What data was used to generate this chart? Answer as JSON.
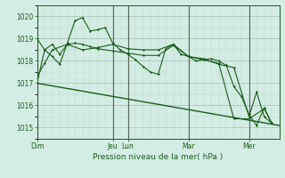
{
  "bg_color": "#d4ede4",
  "grid_color_major": "#a8c8b8",
  "grid_color_minor": "#b8d8c8",
  "line_color": "#1a5c1a",
  "day_line_color": "#556655",
  "title": "Pression niveau de la mer( hPa )",
  "ylim": [
    1014.5,
    1020.5
  ],
  "yticks": [
    1015,
    1016,
    1017,
    1018,
    1019,
    1020
  ],
  "xlim": [
    0,
    192
  ],
  "day_labels": [
    "Dim",
    "Jeu",
    "Lun",
    "Mar",
    "Mer"
  ],
  "day_positions": [
    0,
    60,
    72,
    120,
    168
  ],
  "series_trend": [
    [
      0,
      1017.0
    ],
    [
      192,
      1015.1
    ]
  ],
  "series_main": [
    [
      0,
      1019.0
    ],
    [
      6,
      1018.5
    ],
    [
      12,
      1018.2
    ],
    [
      18,
      1017.85
    ],
    [
      24,
      1018.8
    ],
    [
      30,
      1019.8
    ],
    [
      36,
      1019.95
    ],
    [
      42,
      1019.35
    ],
    [
      48,
      1019.4
    ],
    [
      54,
      1019.5
    ],
    [
      60,
      1018.8
    ],
    [
      66,
      1018.5
    ],
    [
      72,
      1018.3
    ],
    [
      78,
      1018.05
    ],
    [
      84,
      1017.75
    ],
    [
      90,
      1017.5
    ],
    [
      96,
      1017.4
    ],
    [
      102,
      1018.55
    ],
    [
      108,
      1018.75
    ],
    [
      114,
      1018.3
    ],
    [
      120,
      1018.2
    ],
    [
      126,
      1018.0
    ],
    [
      132,
      1018.05
    ],
    [
      138,
      1018.1
    ],
    [
      144,
      1018.0
    ],
    [
      150,
      1017.8
    ],
    [
      156,
      1016.85
    ],
    [
      162,
      1016.4
    ],
    [
      168,
      1015.6
    ],
    [
      174,
      1015.1
    ],
    [
      180,
      1015.9
    ],
    [
      186,
      1015.2
    ]
  ],
  "series2": [
    [
      0,
      1017.0
    ],
    [
      6,
      1018.5
    ],
    [
      12,
      1018.75
    ],
    [
      18,
      1018.3
    ],
    [
      24,
      1018.75
    ],
    [
      30,
      1018.8
    ],
    [
      36,
      1018.75
    ],
    [
      42,
      1018.65
    ],
    [
      48,
      1018.55
    ],
    [
      60,
      1018.45
    ],
    [
      72,
      1018.35
    ],
    [
      84,
      1018.25
    ],
    [
      96,
      1018.25
    ],
    [
      108,
      1018.7
    ],
    [
      120,
      1018.2
    ],
    [
      132,
      1018.05
    ],
    [
      144,
      1017.9
    ],
    [
      156,
      1015.4
    ],
    [
      168,
      1015.4
    ],
    [
      180,
      1015.85
    ],
    [
      186,
      1015.2
    ]
  ],
  "series3": [
    [
      0,
      1017.3
    ],
    [
      6,
      1017.9
    ],
    [
      12,
      1018.5
    ],
    [
      24,
      1018.75
    ],
    [
      36,
      1018.5
    ],
    [
      48,
      1018.6
    ],
    [
      60,
      1018.75
    ],
    [
      72,
      1018.55
    ],
    [
      84,
      1018.5
    ],
    [
      96,
      1018.5
    ],
    [
      108,
      1018.75
    ],
    [
      120,
      1018.2
    ],
    [
      132,
      1018.1
    ],
    [
      144,
      1017.85
    ],
    [
      156,
      1017.7
    ],
    [
      168,
      1015.5
    ],
    [
      174,
      1016.6
    ],
    [
      180,
      1015.5
    ],
    [
      186,
      1015.2
    ]
  ]
}
